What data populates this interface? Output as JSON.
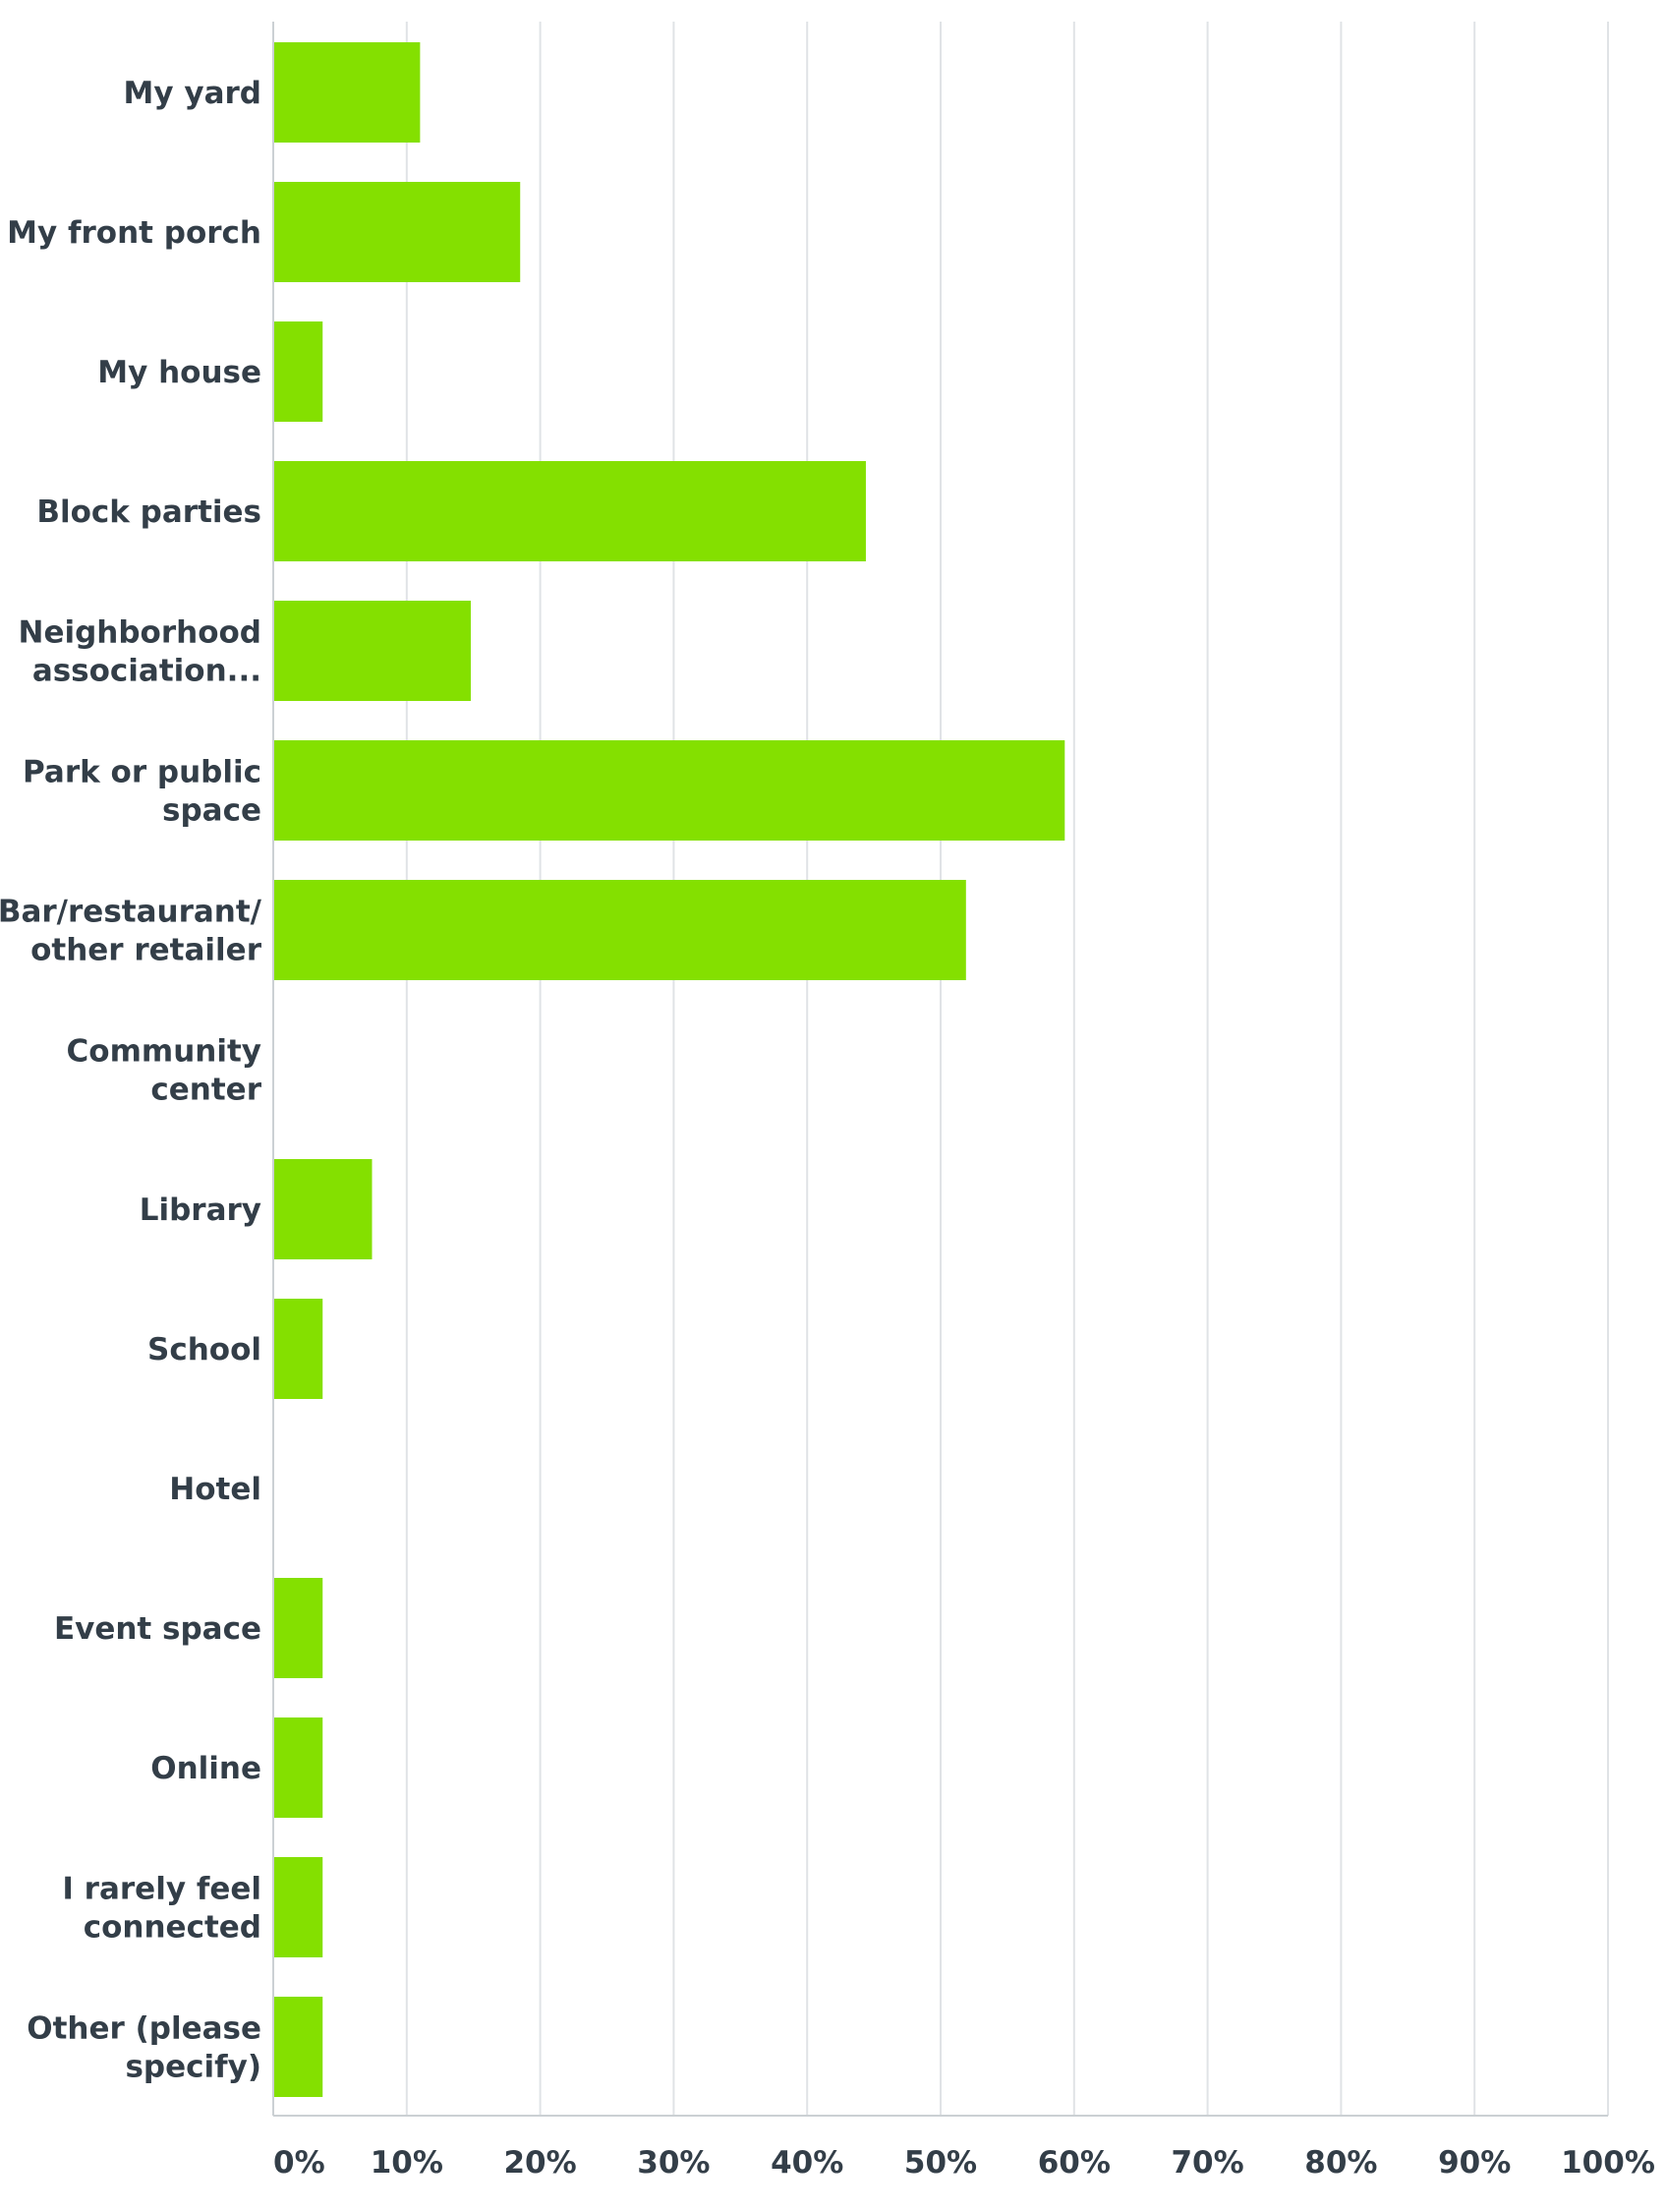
{
  "chart_data": {
    "type": "bar",
    "orientation": "horizontal",
    "title": "",
    "xlabel": "",
    "ylabel": "",
    "categories": [
      [
        "My yard"
      ],
      [
        "My front porch"
      ],
      [
        "My house"
      ],
      [
        "Block parties"
      ],
      [
        "Neighborhood",
        "association..."
      ],
      [
        "Park or public",
        "space"
      ],
      [
        "Bar/restaurant/",
        "other retailer"
      ],
      [
        "Community",
        "center"
      ],
      [
        "Library"
      ],
      [
        "School"
      ],
      [
        "Hotel"
      ],
      [
        "Event space"
      ],
      [
        "Online"
      ],
      [
        "I rarely feel",
        "connected"
      ],
      [
        "Other (please",
        "specify)"
      ]
    ],
    "values": [
      11,
      18.5,
      3.7,
      44.4,
      14.8,
      59.3,
      51.9,
      0,
      7.4,
      3.7,
      0,
      3.7,
      3.7,
      3.7,
      3.7
    ],
    "xlim": [
      0,
      100
    ],
    "ticks": [
      "0%",
      "10%",
      "20%",
      "30%",
      "40%",
      "50%",
      "60%",
      "70%",
      "80%",
      "90%",
      "100%"
    ],
    "grid": true,
    "bar_color": "#84e000",
    "grid_color": "#e0e3e6",
    "axis_color": "#cbd0d4",
    "text_color": "#333e48"
  }
}
